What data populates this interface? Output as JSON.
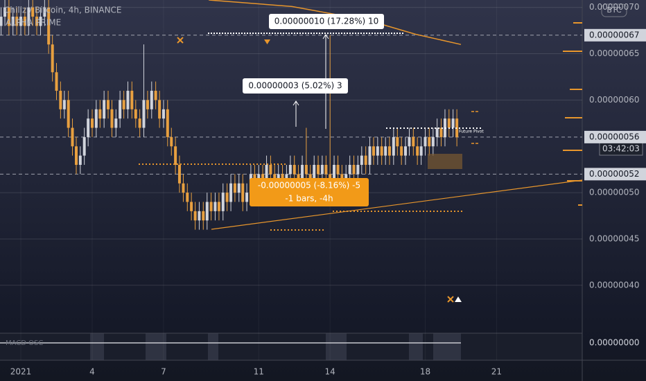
{
  "chart_data": {
    "type": "candlestick",
    "title": "Chiliz / Bitcoin, 4h, BINANCE",
    "indicator": "ALPHA PRIME",
    "currency": "BTC",
    "countdown": "03:42:03",
    "pivot_label": "Future Pivot",
    "oscillator": {
      "name": "MACD OSC",
      "label": "0.00000000"
    },
    "measures": [
      "0.00000010 (17.28%) 10",
      "0.00000003 (5.02%) 3"
    ],
    "measure_down": [
      "-0.00000005 (-8.16%) -5",
      "-1 bars, -4h"
    ],
    "up_color": "#d1d4dc",
    "down_color": "#e8a040",
    "grid": true,
    "xlim": [
      0.125,
      24.6
    ],
    "xticks": [
      {
        "value": 1,
        "label": "2021"
      },
      4,
      7,
      11,
      14,
      18,
      21
    ],
    "ylim": [
      3.49e-07,
      7.08e-07
    ],
    "yticks": [
      {
        "value": 7e-07,
        "label": "0.00000070"
      },
      {
        "value": 6.5e-07,
        "label": "0.00000065"
      },
      {
        "value": 6e-07,
        "label": "0.00000060"
      },
      {
        "value": 5e-07,
        "label": "0.00000050"
      },
      {
        "value": 4.5e-07,
        "label": "0.00000045"
      },
      {
        "value": 4e-07,
        "label": "0.00000040"
      }
    ],
    "levels": [
      {
        "value": 6.7e-07,
        "label": "0.00000067"
      },
      {
        "value": 5.6e-07,
        "label": "0.00000056"
      },
      {
        "value": 5.2e-07,
        "label": "0.00000052"
      }
    ],
    "x": [
      0.17,
      0.33,
      0.5,
      0.67,
      0.83,
      1,
      1.17,
      1.33,
      1.5,
      1.67,
      1.83,
      2,
      2.17,
      2.33,
      2.5,
      2.67,
      2.83,
      3,
      3.17,
      3.33,
      3.5,
      3.67,
      3.83,
      4,
      4.17,
      4.33,
      4.5,
      4.67,
      4.83,
      5,
      5.17,
      5.33,
      5.5,
      5.67,
      5.83,
      6,
      6.17,
      6.33,
      6.5,
      6.67,
      6.83,
      7,
      7.17,
      7.33,
      7.5,
      7.67,
      7.83,
      8,
      8.17,
      8.33,
      8.5,
      8.67,
      8.83,
      9,
      9.17,
      9.33,
      9.5,
      9.67,
      9.83,
      10,
      10.17,
      10.33,
      10.5,
      10.67,
      10.83,
      11,
      11.17,
      11.33,
      11.5,
      11.67,
      11.83,
      12,
      12.17,
      12.33,
      12.5,
      12.67,
      12.83,
      13,
      13.17,
      13.33,
      13.5,
      13.67,
      13.83,
      14,
      14.17,
      14.33,
      14.5,
      14.67,
      14.83,
      15,
      15.17,
      15.33,
      15.5,
      15.67,
      15.83,
      16,
      16.17,
      16.33,
      16.5,
      16.67,
      16.83,
      17,
      17.17,
      17.33,
      17.5,
      17.67,
      17.83,
      18,
      18.17,
      18.33,
      18.5,
      18.67,
      18.83,
      19,
      19.17,
      19.33
    ],
    "open": [
      6.8e-07,
      6.9e-07,
      7e-07,
      6.8e-07,
      6.9e-07,
      6.8e-07,
      6.9e-07,
      6.8e-07,
      7e-07,
      6.9e-07,
      6.8e-07,
      6.9e-07,
      7e-07,
      6.6e-07,
      6.3e-07,
      6.1e-07,
      5.9e-07,
      6e-07,
      5.7e-07,
      5.5e-07,
      5.3e-07,
      5.4e-07,
      5.6e-07,
      5.8e-07,
      5.7e-07,
      5.9e-07,
      5.8e-07,
      6e-07,
      5.9e-07,
      5.7e-07,
      5.8e-07,
      6e-07,
      5.9e-07,
      6.1e-07,
      5.9e-07,
      5.8e-07,
      5.7e-07,
      6e-07,
      5.9e-07,
      6.1e-07,
      6e-07,
      5.8e-07,
      5.9e-07,
      5.6e-07,
      5.5e-07,
      5.3e-07,
      5.1e-07,
      5e-07,
      4.9e-07,
      4.8e-07,
      4.7e-07,
      4.8e-07,
      4.7e-07,
      4.9e-07,
      4.8e-07,
      4.9e-07,
      4.8e-07,
      5e-07,
      4.9e-07,
      5.1e-07,
      5e-07,
      5.1e-07,
      4.9e-07,
      5e-07,
      5.2e-07,
      5.1e-07,
      5.2e-07,
      5.1e-07,
      5.3e-07,
      5.2e-07,
      5.1e-07,
      5.2e-07,
      5.1e-07,
      5.2e-07,
      5.3e-07,
      5.2e-07,
      5.1e-07,
      5.3e-07,
      5.2e-07,
      5.1e-07,
      5.3e-07,
      5.2e-07,
      5.3e-07,
      5.2e-07,
      5.1e-07,
      5.3e-07,
      5.2e-07,
      5.1e-07,
      5.2e-07,
      5.3e-07,
      5.2e-07,
      5.3e-07,
      5.4e-07,
      5.3e-07,
      5.5e-07,
      5.4e-07,
      5.5e-07,
      5.4e-07,
      5.5e-07,
      5.4e-07,
      5.6e-07,
      5.5e-07,
      5.4e-07,
      5.5e-07,
      5.6e-07,
      5.5e-07,
      5.4e-07,
      5.5e-07,
      5.6e-07,
      5.5e-07,
      5.6e-07,
      5.7e-07,
      5.6e-07,
      5.8e-07,
      5.7e-07,
      5.8e-07
    ],
    "high": [
      7e-07,
      7.1e-07,
      7.1e-07,
      7e-07,
      7e-07,
      7e-07,
      7e-07,
      7.1e-07,
      7.1e-07,
      7e-07,
      7e-07,
      7.1e-07,
      7.1e-07,
      6.7e-07,
      6.4e-07,
      6.2e-07,
      6.1e-07,
      6.1e-07,
      5.8e-07,
      5.6e-07,
      5.5e-07,
      5.7e-07,
      5.9e-07,
      5.9e-07,
      6e-07,
      6e-07,
      6.1e-07,
      6.1e-07,
      6e-07,
      5.9e-07,
      6.1e-07,
      6.1e-07,
      6.2e-07,
      6.2e-07,
      6e-07,
      5.9e-07,
      6.6e-07,
      6.1e-07,
      6.2e-07,
      6.2e-07,
      6.1e-07,
      6e-07,
      6e-07,
      5.7e-07,
      5.6e-07,
      5.4e-07,
      5.2e-07,
      5.1e-07,
      5e-07,
      4.9e-07,
      4.9e-07,
      4.9e-07,
      5e-07,
      5e-07,
      5e-07,
      5e-07,
      5.1e-07,
      5.1e-07,
      5.2e-07,
      5.2e-07,
      5.2e-07,
      5.2e-07,
      5.1e-07,
      5.3e-07,
      5.3e-07,
      5.3e-07,
      5.3e-07,
      5.4e-07,
      5.4e-07,
      5.3e-07,
      5.3e-07,
      5.3e-07,
      5.3e-07,
      5.4e-07,
      5.4e-07,
      5.3e-07,
      5.4e-07,
      5.7e-07,
      5.3e-07,
      5.4e-07,
      5.4e-07,
      5.4e-07,
      5.4e-07,
      6.7e-07,
      5.4e-07,
      5.4e-07,
      5.3e-07,
      5.3e-07,
      5.4e-07,
      5.4e-07,
      5.4e-07,
      5.5e-07,
      5.5e-07,
      5.6e-07,
      5.6e-07,
      5.6e-07,
      5.6e-07,
      5.6e-07,
      5.6e-07,
      5.7e-07,
      5.7e-07,
      5.6e-07,
      5.6e-07,
      5.7e-07,
      5.7e-07,
      5.6e-07,
      5.6e-07,
      5.7e-07,
      5.7e-07,
      5.7e-07,
      5.8e-07,
      5.8e-07,
      5.9e-07,
      5.9e-07,
      5.9e-07,
      5.9e-07
    ],
    "low": [
      6.7e-07,
      6.8e-07,
      6.7e-07,
      6.7e-07,
      6.7e-07,
      6.7e-07,
      6.7e-07,
      6.7e-07,
      6.8e-07,
      6.7e-07,
      6.7e-07,
      6.8e-07,
      6.5e-07,
      6.2e-07,
      6e-07,
      5.8e-07,
      5.8e-07,
      5.6e-07,
      5.4e-07,
      5.2e-07,
      5.2e-07,
      5.3e-07,
      5.5e-07,
      5.6e-07,
      5.6e-07,
      5.7e-07,
      5.7e-07,
      5.8e-07,
      5.6e-07,
      5.6e-07,
      5.7e-07,
      5.8e-07,
      5.8e-07,
      5.8e-07,
      5.7e-07,
      5.6e-07,
      5.6e-07,
      5.8e-07,
      5.8e-07,
      5.9e-07,
      5.7e-07,
      5.7e-07,
      5.5e-07,
      5.4e-07,
      5.2e-07,
      5e-07,
      4.9e-07,
      4.8e-07,
      4.7e-07,
      4.6e-07,
      4.6e-07,
      4.6e-07,
      4.6e-07,
      4.7e-07,
      4.7e-07,
      4.7e-07,
      4.7e-07,
      4.8e-07,
      4.8e-07,
      4.9e-07,
      4.9e-07,
      4.8e-07,
      4.8e-07,
      4.9e-07,
      5e-07,
      5e-07,
      5e-07,
      5e-07,
      5.1e-07,
      5e-07,
      5e-07,
      5e-07,
      5e-07,
      5.1e-07,
      5.1e-07,
      5e-07,
      5e-07,
      5.1e-07,
      5e-07,
      5e-07,
      5.1e-07,
      5.1e-07,
      5.1e-07,
      5e-07,
      5e-07,
      5.1e-07,
      5e-07,
      5e-07,
      5.1e-07,
      5.1e-07,
      5.1e-07,
      5.2e-07,
      5.2e-07,
      5.2e-07,
      5.3e-07,
      5.3e-07,
      5.3e-07,
      5.3e-07,
      5.3e-07,
      5.3e-07,
      5.4e-07,
      5.3e-07,
      5.3e-07,
      5.4e-07,
      5.4e-07,
      5.3e-07,
      5.3e-07,
      5.4e-07,
      5.4e-07,
      5.4e-07,
      5.5e-07,
      5.5e-07,
      5.5e-07,
      5.6e-07,
      5.6e-07,
      5.5e-07
    ],
    "close": [
      6.9e-07,
      7e-07,
      6.8e-07,
      6.9e-07,
      6.8e-07,
      6.9e-07,
      6.8e-07,
      7e-07,
      6.9e-07,
      6.8e-07,
      6.9e-07,
      7e-07,
      6.6e-07,
      6.3e-07,
      6.1e-07,
      5.9e-07,
      6e-07,
      5.7e-07,
      5.5e-07,
      5.3e-07,
      5.4e-07,
      5.6e-07,
      5.8e-07,
      5.7e-07,
      5.9e-07,
      5.8e-07,
      6e-07,
      5.9e-07,
      5.7e-07,
      5.8e-07,
      6e-07,
      5.9e-07,
      6.1e-07,
      5.9e-07,
      5.8e-07,
      5.7e-07,
      6e-07,
      5.9e-07,
      6.1e-07,
      6e-07,
      5.8e-07,
      5.9e-07,
      5.6e-07,
      5.5e-07,
      5.3e-07,
      5.1e-07,
      5e-07,
      4.9e-07,
      4.8e-07,
      4.7e-07,
      4.8e-07,
      4.7e-07,
      4.9e-07,
      4.8e-07,
      4.9e-07,
      4.8e-07,
      5e-07,
      4.9e-07,
      5.1e-07,
      5e-07,
      5.1e-07,
      4.9e-07,
      5e-07,
      5.2e-07,
      5.1e-07,
      5.2e-07,
      5.1e-07,
      5.3e-07,
      5.2e-07,
      5.1e-07,
      5.2e-07,
      5.1e-07,
      5.2e-07,
      5.3e-07,
      5.2e-07,
      5.1e-07,
      5.3e-07,
      5.2e-07,
      5.1e-07,
      5.3e-07,
      5.2e-07,
      5.3e-07,
      5.2e-07,
      5.1e-07,
      5.3e-07,
      5.2e-07,
      5.1e-07,
      5.2e-07,
      5.3e-07,
      5.2e-07,
      5.3e-07,
      5.4e-07,
      5.3e-07,
      5.5e-07,
      5.4e-07,
      5.5e-07,
      5.4e-07,
      5.5e-07,
      5.4e-07,
      5.6e-07,
      5.5e-07,
      5.4e-07,
      5.5e-07,
      5.6e-07,
      5.5e-07,
      5.4e-07,
      5.5e-07,
      5.6e-07,
      5.5e-07,
      5.6e-07,
      5.7e-07,
      5.6e-07,
      5.8e-07,
      5.7e-07,
      5.8e-07,
      5.6e-07
    ],
    "series": [
      {
        "type": "line",
        "color": "#e8962c",
        "x": [
          8.9,
          12.4,
          15.6,
          17.6,
          19.5
        ],
        "values": [
          7.08e-07,
          7.01e-07,
          6.86e-07,
          6.71e-07,
          6.6e-07
        ]
      }
    ]
  }
}
